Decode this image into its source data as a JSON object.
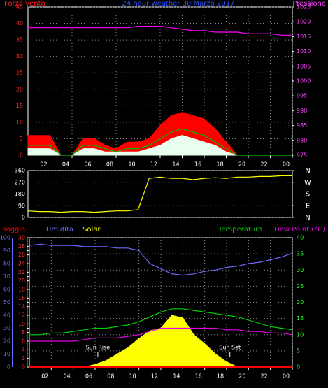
{
  "chart_data": [
    {
      "type": "line",
      "title": "24 hour weather  30 Marzo 2017",
      "ylabel": "Forza vento",
      "y2label": "Pressione",
      "xlim": [
        0,
        24
      ],
      "xticks": [
        {
          "value": 2,
          "label": "02"
        },
        {
          "value": 4,
          "label": "04"
        },
        {
          "value": 6,
          "label": "06"
        },
        {
          "value": 8,
          "label": "08"
        },
        10,
        12,
        14,
        16,
        18,
        20,
        22,
        {
          "value": 24,
          "label": "00"
        }
      ],
      "ylim": [
        0,
        45
      ],
      "yticks": [
        0,
        5,
        10,
        15,
        20,
        25,
        30,
        35,
        40,
        45
      ],
      "y2lim": [
        975,
        1025
      ],
      "y2ticks": [
        975,
        980,
        985,
        990,
        995,
        1000,
        1005,
        1010,
        1015,
        1020,
        1025
      ],
      "grid": true,
      "x": [
        0,
        1,
        2,
        3,
        4,
        5,
        6,
        7,
        8,
        9,
        10,
        11,
        12,
        13,
        14,
        15,
        16,
        17,
        18,
        19,
        20,
        21,
        22,
        23,
        24
      ],
      "series": [
        {
          "color": "#ff0000",
          "fill": true,
          "values": [
            6,
            6,
            6,
            0,
            0,
            5,
            5,
            3,
            2,
            4,
            4,
            5,
            9,
            12,
            13,
            12,
            11,
            8,
            4,
            0,
            0,
            0,
            0,
            0,
            0
          ]
        },
        {
          "color": "#e8fff0",
          "fill": true,
          "values": [
            2,
            2,
            2,
            0,
            0,
            2,
            2,
            1,
            1,
            1,
            1,
            2,
            3,
            5,
            6,
            5,
            4,
            3,
            1,
            0,
            0,
            0,
            0,
            0,
            0
          ]
        },
        {
          "color": "#00c000",
          "fill": false,
          "values": [
            3,
            3,
            3,
            0,
            0,
            3,
            3,
            2,
            1,
            2,
            2,
            3,
            5,
            7,
            8,
            7,
            6,
            4,
            2,
            0,
            0,
            0,
            0,
            0,
            0
          ]
        },
        {
          "color": "#ff00ff",
          "fill": false,
          "axis": "y2",
          "values": [
            1018,
            1018,
            1018,
            1018,
            1018,
            1018,
            1018,
            1018,
            1018,
            1018,
            1018.5,
            1018.5,
            1018.5,
            1018,
            1017.5,
            1017,
            1017,
            1016.5,
            1016.5,
            1016.5,
            1016,
            1016,
            1016,
            1015.5,
            1015.5
          ]
        }
      ]
    },
    {
      "type": "line",
      "xlim": [
        0,
        24
      ],
      "ylim": [
        0,
        360
      ],
      "yticks": [
        0,
        90,
        180,
        270,
        360
      ],
      "y2lim": [
        0,
        360
      ],
      "y2ticks": [
        {
          "value": 360,
          "label": "N"
        },
        {
          "value": 270,
          "label": "W"
        },
        {
          "value": 180,
          "label": "S"
        },
        {
          "value": 90,
          "label": "E"
        },
        {
          "value": 0,
          "label": "N"
        }
      ],
      "grid": true,
      "x": [
        0,
        1,
        2,
        3,
        4,
        5,
        6,
        7,
        8,
        9,
        10,
        11,
        12,
        13,
        14,
        15,
        16,
        17,
        18,
        19,
        20,
        21,
        22,
        23,
        24
      ],
      "series": [
        {
          "color": "#ffff00",
          "fill": false,
          "values": [
            50,
            45,
            45,
            40,
            45,
            45,
            40,
            45,
            50,
            50,
            60,
            300,
            310,
            300,
            300,
            290,
            300,
            305,
            300,
            310,
            310,
            315,
            315,
            320,
            320
          ]
        }
      ]
    },
    {
      "type": "line",
      "xlim": [
        0,
        24
      ],
      "xticks": [
        {
          "value": 2,
          "label": "02"
        },
        {
          "value": 4,
          "label": "04"
        },
        {
          "value": 6,
          "label": "06"
        },
        {
          "value": 8,
          "label": "08"
        },
        10,
        12,
        14,
        16,
        18,
        20,
        22,
        {
          "value": 24,
          "label": "00"
        }
      ],
      "ylim": [
        0,
        30
      ],
      "yticks": [
        0,
        2,
        4,
        6,
        8,
        10,
        12,
        14,
        16,
        18,
        20,
        22,
        24,
        26,
        28,
        30
      ],
      "y2lim": [
        0,
        40
      ],
      "y2ticks": [
        0,
        5,
        10,
        15,
        20,
        25,
        30,
        35,
        40
      ],
      "y3lim": [
        0,
        100
      ],
      "y3ticks": [
        0,
        10,
        20,
        30,
        40,
        50,
        60,
        70,
        80,
        90,
        100
      ],
      "grid": true,
      "annotations": [
        {
          "text": "Sun Rise",
          "x": 6.25
        },
        {
          "text": "Sun Set",
          "x": 18.3
        }
      ],
      "x": [
        0,
        1,
        2,
        3,
        4,
        5,
        6,
        7,
        8,
        9,
        10,
        11,
        12,
        13,
        14,
        15,
        16,
        17,
        18,
        19,
        20,
        21,
        22,
        23,
        24
      ],
      "series": [
        {
          "name": "Pioggia",
          "color": "#ff0000",
          "fill": false,
          "values": [
            0,
            0,
            0,
            0,
            0,
            0,
            0,
            0,
            0,
            0,
            0,
            0,
            0,
            0,
            0,
            0,
            0,
            0,
            0,
            0,
            0,
            0,
            0,
            0,
            0
          ]
        },
        {
          "name": "Umidita",
          "color": "#6a6aff",
          "fill": false,
          "axis": "y3",
          "values": [
            94,
            95,
            94,
            94,
            94,
            93,
            93,
            93,
            92,
            92,
            90,
            80,
            76,
            72,
            71,
            72,
            74,
            75,
            77,
            78,
            80,
            81,
            83,
            85,
            88
          ]
        },
        {
          "name": "Solar",
          "color": "#ffff00",
          "fill": true,
          "axis": "y3",
          "values": [
            0,
            0,
            0,
            0,
            0,
            0,
            2,
            5,
            10,
            15,
            22,
            28,
            30,
            40,
            38,
            25,
            18,
            10,
            4,
            0,
            0,
            0,
            0,
            0,
            0
          ]
        },
        {
          "name": "Temperatura",
          "color": "#00d000",
          "fill": false,
          "axis": "y2",
          "values": [
            10,
            10,
            10.5,
            10.5,
            11,
            11.5,
            12,
            12,
            12.5,
            13,
            14,
            15.5,
            17,
            18,
            18,
            17.5,
            17,
            16.5,
            16,
            15.5,
            14.5,
            13.5,
            12.5,
            12,
            11.5
          ]
        },
        {
          "name": "Dew Point (°C)",
          "color": "#e000e0",
          "fill": false,
          "axis": "y2",
          "values": [
            8,
            8,
            8,
            8,
            8,
            8.5,
            9,
            9,
            9,
            9.5,
            10,
            11,
            12,
            12,
            12,
            12,
            12,
            12,
            11.5,
            11.5,
            11,
            11,
            10.5,
            10.5,
            10
          ]
        }
      ]
    }
  ]
}
